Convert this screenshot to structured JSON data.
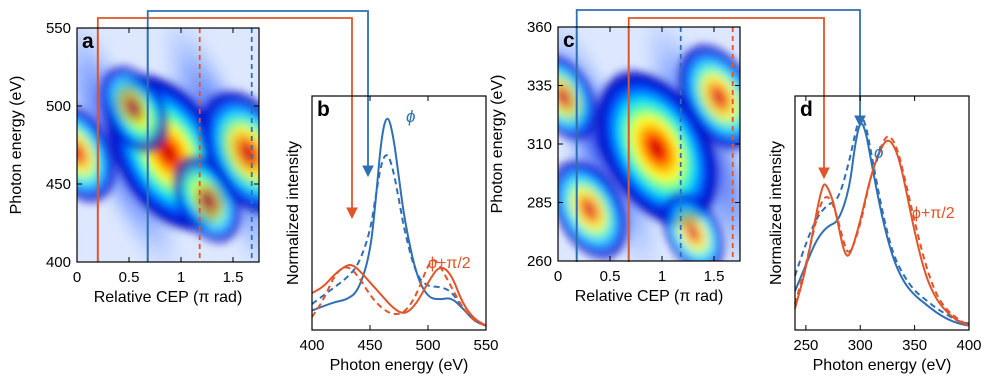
{
  "colors": {
    "blue": "#2f6fb5",
    "orange": "#e0552a",
    "axis": "#000000"
  },
  "chart_data": [
    {
      "panel": "a",
      "type": "heatmap",
      "xlabel": "Relative CEP (π rad)",
      "ylabel": "Photon energy (eV)",
      "xlim": [
        0,
        1.75
      ],
      "ylim": [
        400,
        550
      ],
      "xticks": [
        "0",
        "0.5",
        "1",
        "1.5"
      ],
      "yticks": [
        "400",
        "450",
        "500",
        "550"
      ],
      "lines": {
        "orange_solid": 0.2,
        "blue_solid": 0.68,
        "orange_dashed": 1.18,
        "blue_dashed": 1.68
      },
      "hotspots": [
        {
          "x": 0.88,
          "y": 470,
          "z": 1.0
        },
        {
          "x": 1.65,
          "y": 470,
          "z": 0.75
        },
        {
          "x": 0.0,
          "y": 470,
          "z": 0.55
        },
        {
          "x": 0.55,
          "y": 498,
          "z": 0.45
        },
        {
          "x": 1.25,
          "y": 440,
          "z": 0.45
        }
      ]
    },
    {
      "panel": "b",
      "type": "line",
      "xlabel": "Photon energy (eV)",
      "ylabel": "Normalized intensity",
      "xlim": [
        400,
        550
      ],
      "ylim": [
        0,
        1.08
      ],
      "xticks": [
        "400",
        "450",
        "500",
        "550"
      ],
      "annotations": {
        "phi": "ϕ",
        "phi_shift": "ϕ+π/2"
      },
      "series": [
        {
          "color": "blue",
          "style": "solid",
          "x": [
            400,
            410,
            420,
            430,
            440,
            450,
            455,
            460,
            465,
            470,
            475,
            480,
            490,
            500,
            510,
            520,
            530,
            540,
            550
          ],
          "y": [
            0.09,
            0.11,
            0.13,
            0.14,
            0.18,
            0.35,
            0.6,
            0.9,
            1.0,
            0.9,
            0.7,
            0.5,
            0.25,
            0.15,
            0.14,
            0.15,
            0.1,
            0.04,
            0.02
          ]
        },
        {
          "color": "blue",
          "style": "dashed",
          "x": [
            400,
            410,
            420,
            430,
            440,
            450,
            455,
            460,
            465,
            470,
            475,
            480,
            490,
            500,
            510,
            520,
            530,
            540,
            550
          ],
          "y": [
            0.12,
            0.16,
            0.2,
            0.24,
            0.3,
            0.45,
            0.62,
            0.78,
            0.82,
            0.74,
            0.6,
            0.45,
            0.25,
            0.2,
            0.2,
            0.18,
            0.1,
            0.04,
            0.02
          ]
        },
        {
          "color": "orange",
          "style": "solid",
          "x": [
            400,
            410,
            420,
            430,
            435,
            440,
            450,
            460,
            470,
            480,
            490,
            500,
            510,
            520,
            530,
            540,
            550
          ],
          "y": [
            0.17,
            0.2,
            0.26,
            0.3,
            0.3,
            0.28,
            0.22,
            0.16,
            0.1,
            0.07,
            0.12,
            0.22,
            0.3,
            0.26,
            0.12,
            0.05,
            0.02
          ]
        },
        {
          "color": "orange",
          "style": "dashed",
          "x": [
            400,
            410,
            420,
            430,
            440,
            450,
            460,
            470,
            480,
            490,
            500,
            505,
            510,
            520,
            530,
            540,
            550
          ],
          "y": [
            0.06,
            0.14,
            0.26,
            0.3,
            0.25,
            0.16,
            0.1,
            0.07,
            0.08,
            0.16,
            0.3,
            0.33,
            0.3,
            0.2,
            0.1,
            0.04,
            0.02
          ]
        }
      ]
    },
    {
      "panel": "c",
      "type": "heatmap",
      "xlabel": "Relative CEP (π rad)",
      "ylabel": "Photon energy (eV)",
      "xlim": [
        0,
        1.75
      ],
      "ylim": [
        260,
        360
      ],
      "xticks": [
        "0",
        "0.5",
        "1",
        "1.5"
      ],
      "yticks": [
        "260",
        "285",
        "310",
        "335",
        "360"
      ],
      "lines": {
        "blue_solid": 0.18,
        "orange_solid": 0.68,
        "blue_dashed": 1.18,
        "orange_dashed": 1.68
      },
      "hotspots": [
        {
          "x": 0.95,
          "y": 308,
          "z": 1.0
        },
        {
          "x": 0.3,
          "y": 282,
          "z": 0.55
        },
        {
          "x": 1.55,
          "y": 330,
          "z": 0.6
        },
        {
          "x": 0.05,
          "y": 330,
          "z": 0.45
        },
        {
          "x": 1.3,
          "y": 272,
          "z": 0.4
        }
      ]
    },
    {
      "panel": "d",
      "type": "line",
      "xlabel": "Photon energy (eV)",
      "ylabel": "Normalized intensity",
      "xlim": [
        240,
        400
      ],
      "ylim": [
        0,
        1.08
      ],
      "xticks": [
        "250",
        "300",
        "350",
        "400"
      ],
      "annotations": {
        "phi": "ϕ",
        "phi_shift": "ϕ+π/2"
      },
      "series": [
        {
          "color": "blue",
          "style": "solid",
          "x": [
            240,
            250,
            260,
            270,
            280,
            290,
            295,
            300,
            305,
            310,
            320,
            330,
            340,
            350,
            360,
            370,
            380,
            390,
            400
          ],
          "y": [
            0.18,
            0.3,
            0.42,
            0.48,
            0.5,
            0.65,
            0.85,
            0.97,
            0.92,
            0.78,
            0.52,
            0.33,
            0.22,
            0.16,
            0.12,
            0.08,
            0.05,
            0.03,
            0.02
          ]
        },
        {
          "color": "blue",
          "style": "dashed",
          "x": [
            240,
            250,
            260,
            270,
            280,
            290,
            295,
            300,
            305,
            310,
            320,
            330,
            340,
            350,
            360,
            370,
            380,
            390,
            400
          ],
          "y": [
            0.25,
            0.4,
            0.52,
            0.58,
            0.6,
            0.78,
            0.9,
            1.0,
            0.95,
            0.82,
            0.55,
            0.35,
            0.25,
            0.18,
            0.14,
            0.1,
            0.07,
            0.04,
            0.03
          ]
        },
        {
          "color": "orange",
          "style": "solid",
          "x": [
            240,
            250,
            260,
            265,
            268,
            275,
            280,
            285,
            290,
            300,
            310,
            320,
            325,
            330,
            335,
            340,
            350,
            360,
            370,
            380,
            390,
            400
          ],
          "y": [
            0.1,
            0.28,
            0.55,
            0.66,
            0.68,
            0.6,
            0.48,
            0.36,
            0.33,
            0.5,
            0.72,
            0.85,
            0.88,
            0.86,
            0.8,
            0.7,
            0.45,
            0.25,
            0.14,
            0.08,
            0.04,
            0.02
          ]
        },
        {
          "color": "orange",
          "style": "dashed",
          "x": [
            240,
            250,
            260,
            265,
            270,
            275,
            280,
            285,
            290,
            300,
            310,
            320,
            325,
            330,
            335,
            340,
            350,
            360,
            370,
            380,
            390,
            400
          ],
          "y": [
            0.12,
            0.3,
            0.52,
            0.6,
            0.62,
            0.58,
            0.5,
            0.4,
            0.34,
            0.48,
            0.72,
            0.86,
            0.9,
            0.88,
            0.82,
            0.72,
            0.5,
            0.3,
            0.16,
            0.09,
            0.05,
            0.02
          ]
        }
      ]
    }
  ]
}
